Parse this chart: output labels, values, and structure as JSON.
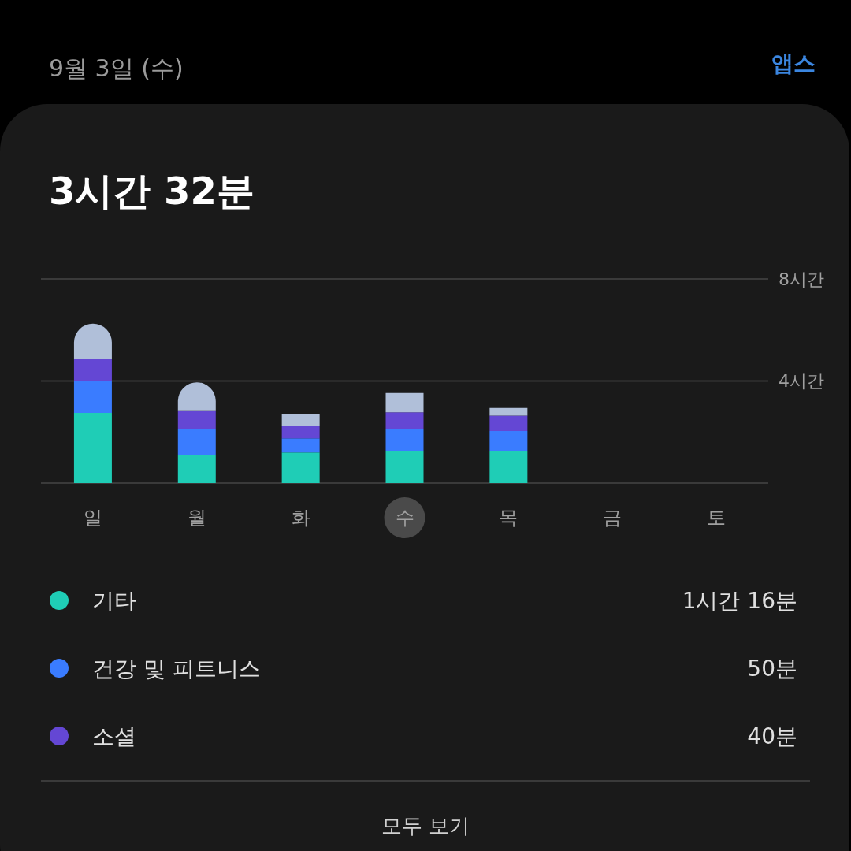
{
  "chart_data": {
    "type": "bar",
    "stacked": true,
    "title": "3시간 32분",
    "categories": [
      "일",
      "월",
      "화",
      "수",
      "목",
      "금",
      "토"
    ],
    "series": [
      {
        "name": "기타",
        "color": "#1fcdb6",
        "values": [
          2.75,
          1.1,
          1.2,
          1.27,
          1.27,
          null,
          null
        ]
      },
      {
        "name": "건강 및 피트니스",
        "color": "#3a7cff",
        "values": [
          1.25,
          1.0,
          0.55,
          0.83,
          0.77,
          null,
          null
        ]
      },
      {
        "name": "소셜",
        "color": "#6447d4",
        "values": [
          0.85,
          0.75,
          0.5,
          0.67,
          0.6,
          null,
          null
        ]
      },
      {
        "color": "#b0bfd9",
        "values": [
          1.4,
          1.1,
          0.45,
          0.76,
          0.3,
          null,
          null
        ]
      }
    ],
    "ylim": [
      0,
      8
    ],
    "yticks": [
      {
        "value": 0,
        "label": null
      },
      {
        "value": 4,
        "label": "4시간"
      },
      {
        "value": 8,
        "label": "8시간"
      }
    ],
    "grid": "y",
    "legend": "bottom",
    "annotations": [
      "9월 3일 (수)",
      "앱스",
      "1시간 16분",
      "50분",
      "40분",
      "모두 보기"
    ]
  }
}
